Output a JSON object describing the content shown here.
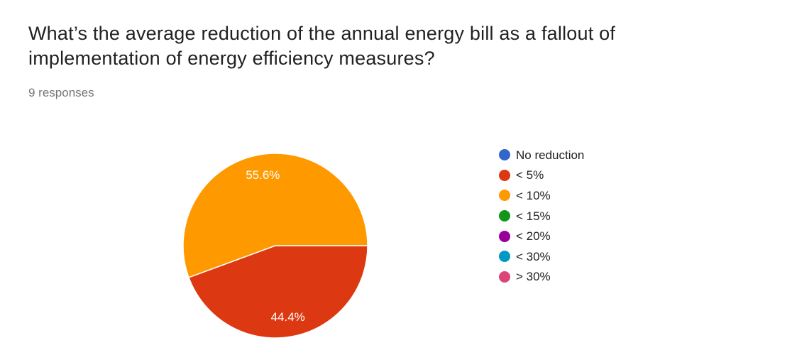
{
  "header": {
    "title": "What’s the average reduction of the annual energy bill as a fallout of implementation of energy efficiency measures?",
    "responses_label": "9 responses"
  },
  "chart_data": {
    "type": "pie",
    "title": "What’s the average reduction of the annual energy bill as a fallout of implementation of energy efficiency measures?",
    "subtitle": "9 responses",
    "categories": [
      "No reduction",
      "< 5%",
      "< 10%",
      "< 15%",
      "< 20%",
      "< 30%",
      "> 30%"
    ],
    "values": [
      0,
      44.4,
      55.6,
      0,
      0,
      0,
      0
    ],
    "slice_labels": [
      "",
      "44.4%",
      "55.6%",
      "",
      "",
      "",
      ""
    ],
    "colors": [
      "#3366CC",
      "#DC3912",
      "#FF9900",
      "#109618",
      "#990099",
      "#0099C6",
      "#DD4477"
    ],
    "legend_position": "right",
    "start_angle": "3-oclock",
    "direction": "clockwise",
    "slice_label_color": "#ffffff"
  }
}
